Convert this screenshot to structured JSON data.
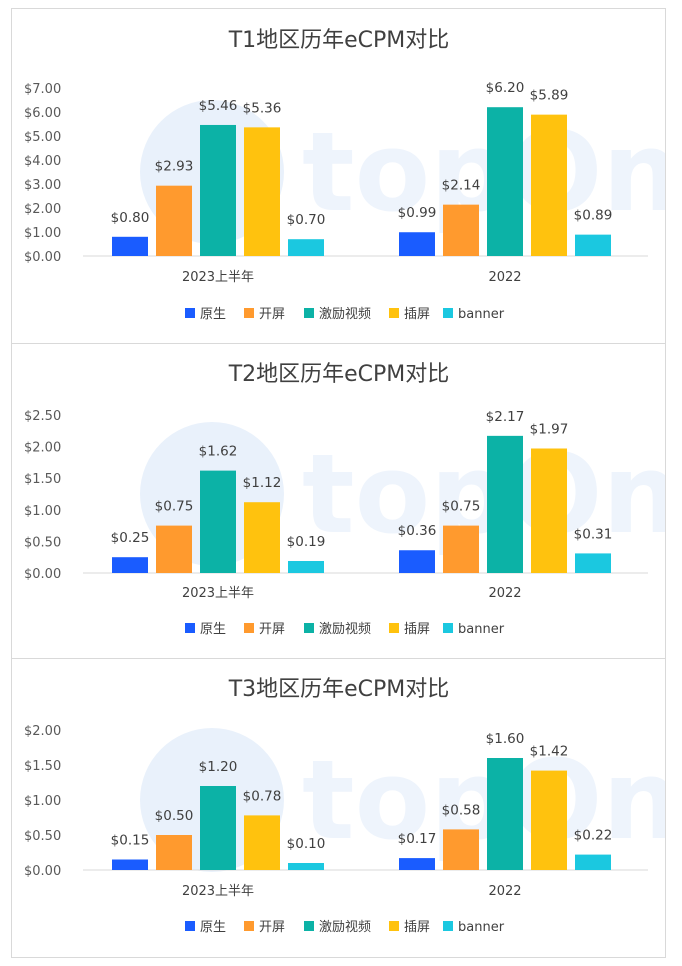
{
  "chart_data": [
    {
      "type": "bar",
      "title": "T1地区历年eCPM对比",
      "categories": [
        "2023上半年",
        "2022"
      ],
      "series": [
        {
          "name": "原生",
          "color": "#1a5cff",
          "values": [
            0.8,
            0.99
          ],
          "labels": [
            "$0.80",
            "$0.99"
          ]
        },
        {
          "name": "开屏",
          "color": "#ff9a2e",
          "values": [
            2.93,
            2.14
          ],
          "labels": [
            "$2.93",
            "$2.14"
          ]
        },
        {
          "name": "激励视频",
          "color": "#0cb2a6",
          "values": [
            5.46,
            6.2
          ],
          "labels": [
            "$5.46",
            "$6.20"
          ]
        },
        {
          "name": "插屏",
          "color": "#ffc20e",
          "values": [
            5.36,
            5.89
          ],
          "labels": [
            "$5.36",
            "$5.89"
          ]
        },
        {
          "name": "banner",
          "color": "#1bc8e0",
          "values": [
            0.7,
            0.89
          ],
          "labels": [
            "$0.70",
            "$0.89"
          ]
        }
      ],
      "ylim": [
        0,
        7
      ],
      "yticks": [
        0,
        1,
        2,
        3,
        4,
        5,
        6,
        7
      ],
      "ytick_labels": [
        "$0.00",
        "$1.00",
        "$2.00",
        "$3.00",
        "$4.00",
        "$5.00",
        "$6.00",
        "$7.00"
      ],
      "legend": "bottom",
      "grid": false,
      "watermark": "topOn"
    },
    {
      "type": "bar",
      "title": "T2地区历年eCPM对比",
      "categories": [
        "2023上半年",
        "2022"
      ],
      "series": [
        {
          "name": "原生",
          "color": "#1a5cff",
          "values": [
            0.25,
            0.36
          ],
          "labels": [
            "$0.25",
            "$0.36"
          ]
        },
        {
          "name": "开屏",
          "color": "#ff9a2e",
          "values": [
            0.75,
            0.75
          ],
          "labels": [
            "$0.75",
            "$0.75"
          ]
        },
        {
          "name": "激励视频",
          "color": "#0cb2a6",
          "values": [
            1.62,
            2.17
          ],
          "labels": [
            "$1.62",
            "$2.17"
          ]
        },
        {
          "name": "插屏",
          "color": "#ffc20e",
          "values": [
            1.12,
            1.97
          ],
          "labels": [
            "$1.12",
            "$1.97"
          ]
        },
        {
          "name": "banner",
          "color": "#1bc8e0",
          "values": [
            0.19,
            0.31
          ],
          "labels": [
            "$0.19",
            "$0.31"
          ]
        }
      ],
      "ylim": [
        0,
        2.5
      ],
      "yticks": [
        0,
        0.5,
        1,
        1.5,
        2,
        2.5
      ],
      "ytick_labels": [
        "$0.00",
        "$0.50",
        "$1.00",
        "$1.50",
        "$2.00",
        "$2.50"
      ],
      "legend": "bottom",
      "grid": false,
      "watermark": "topOn"
    },
    {
      "type": "bar",
      "title": "T3地区历年eCPM对比",
      "categories": [
        "2023上半年",
        "2022"
      ],
      "series": [
        {
          "name": "原生",
          "color": "#1a5cff",
          "values": [
            0.15,
            0.17
          ],
          "labels": [
            "$0.15",
            "$0.17"
          ]
        },
        {
          "name": "开屏",
          "color": "#ff9a2e",
          "values": [
            0.5,
            0.58
          ],
          "labels": [
            "$0.50",
            "$0.58"
          ]
        },
        {
          "name": "激励视频",
          "color": "#0cb2a6",
          "values": [
            1.2,
            1.6
          ],
          "labels": [
            "$1.20",
            "$1.60"
          ]
        },
        {
          "name": "插屏",
          "color": "#ffc20e",
          "values": [
            0.78,
            1.42
          ],
          "labels": [
            "$0.78",
            "$1.42"
          ]
        },
        {
          "name": "banner",
          "color": "#1bc8e0",
          "values": [
            0.1,
            0.22
          ],
          "labels": [
            "$0.10",
            "$0.22"
          ]
        }
      ],
      "ylim": [
        0,
        2
      ],
      "yticks": [
        0,
        0.5,
        1,
        1.5,
        2
      ],
      "ytick_labels": [
        "$0.00",
        "$0.50",
        "$1.00",
        "$1.50",
        "$2.00"
      ],
      "legend": "bottom",
      "grid": false,
      "watermark": "topOn"
    }
  ]
}
